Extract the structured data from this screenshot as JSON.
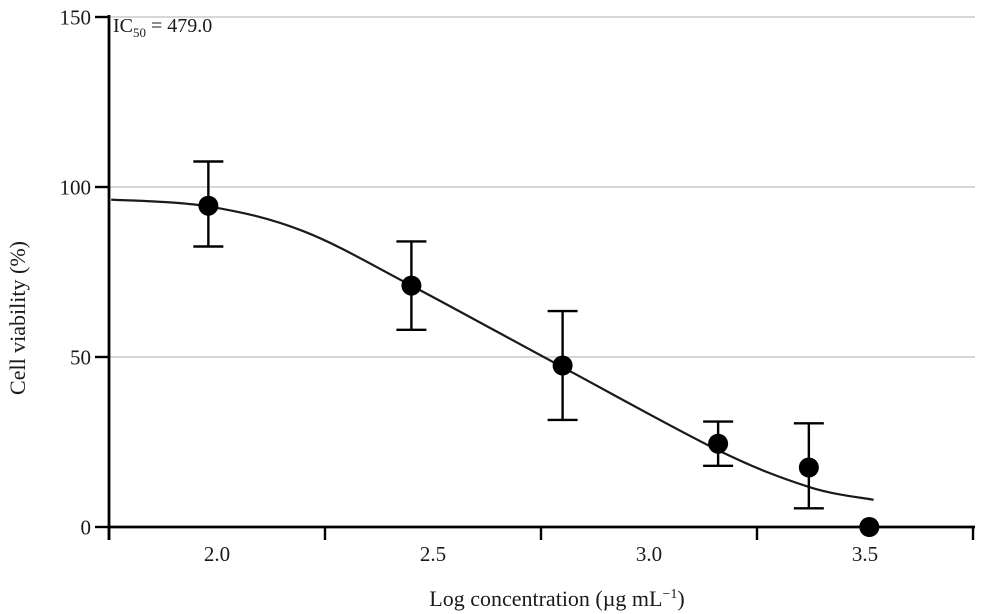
{
  "figure": {
    "background": "#ffffff"
  },
  "annotation": {
    "prefix": "IC",
    "sub": "50",
    "rest": " = 479.0"
  },
  "chart_data": {
    "type": "scatter",
    "title": "",
    "xlabel": "Log concentration (µg mL⁻¹)",
    "xlabel_parts": {
      "main": "Log concentration (µg mL",
      "sup": "−1",
      "close": ")"
    },
    "ylabel": "Cell viability (%)",
    "xlim": [
      1.75,
      3.75
    ],
    "ylim": [
      0,
      150
    ],
    "x_axis_ticks": [
      1.75,
      2.25,
      2.75,
      3.25,
      3.75
    ],
    "x_tick_labels": [
      {
        "value": 2.0,
        "label": "2.0"
      },
      {
        "value": 2.5,
        "label": "2.5"
      },
      {
        "value": 3.0,
        "label": "3.0"
      },
      {
        "value": 3.5,
        "label": "3.5"
      }
    ],
    "y_tick_labels": [
      {
        "value": 0,
        "label": "0"
      },
      {
        "value": 50,
        "label": "50"
      },
      {
        "value": 100,
        "label": "100"
      },
      {
        "value": 150,
        "label": "150"
      }
    ],
    "gridlines_y": [
      50,
      100,
      150
    ],
    "grid_on": true,
    "legend": null,
    "colors": {
      "marker": "#000000",
      "curve": "#1a1a1a",
      "axis": "#000000",
      "grid": "#d7d7da",
      "text": "#1a1a1a"
    },
    "series": [
      {
        "name": "Cell viability",
        "marker": "filled-circle",
        "points": [
          {
            "x": 1.98,
            "y": 94.5,
            "err_up": 13,
            "err_down": 12
          },
          {
            "x": 2.45,
            "y": 71.0,
            "err_up": 13,
            "err_down": 13
          },
          {
            "x": 2.8,
            "y": 47.5,
            "err_up": 16,
            "err_down": 16
          },
          {
            "x": 3.16,
            "y": 24.5,
            "err_up": 6.5,
            "err_down": 6.5
          },
          {
            "x": 3.37,
            "y": 17.5,
            "err_up": 13,
            "err_down": 12
          },
          {
            "x": 3.51,
            "y": 0,
            "err_up": 0,
            "err_down": 0
          }
        ]
      }
    ],
    "fit_curve": {
      "label": "sigmoidal dose-response fit",
      "ic50": 479.0,
      "anchors": [
        [
          1.755,
          96.3
        ],
        [
          1.98,
          94.3
        ],
        [
          2.2,
          87.0
        ],
        [
          2.45,
          71.0
        ],
        [
          2.8,
          47.0
        ],
        [
          3.16,
          22.6
        ],
        [
          3.37,
          11.8
        ],
        [
          3.52,
          8.0
        ]
      ]
    }
  }
}
